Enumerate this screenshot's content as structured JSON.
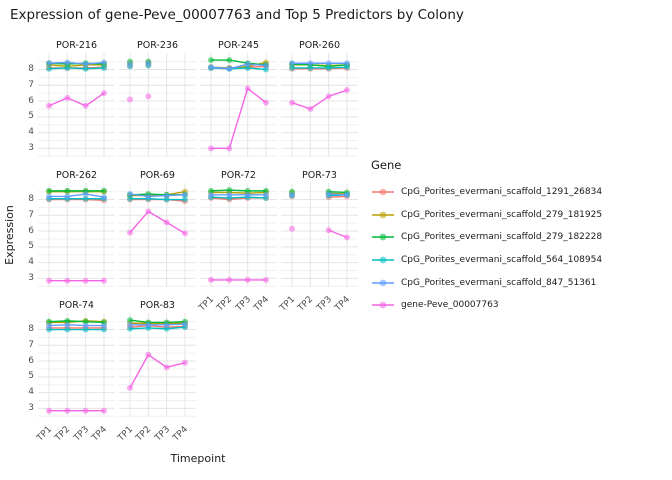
{
  "chart_data": {
    "type": "line",
    "title": "Expression of gene-Peve_00007763 and Top 5 Predictors by Colony",
    "xlabel": "Timepoint",
    "ylabel": "Expression",
    "legend_title": "Gene",
    "legend_position": "right",
    "grid": true,
    "x_categories": [
      "TP1",
      "TP2",
      "TP3",
      "TP4"
    ],
    "y_ticks": [
      3,
      4,
      5,
      6,
      7,
      8
    ],
    "ylim": [
      2.45,
      9.05
    ],
    "series": [
      {
        "name": "CpG_Porites_evermani_scaffold_1291_26834",
        "color": "#F8766D"
      },
      {
        "name": "CpG_Porites_evermani_scaffold_279_181925",
        "color": "#B79F00"
      },
      {
        "name": "CpG_Porites_evermani_scaffold_279_182228",
        "color": "#00BA38"
      },
      {
        "name": "CpG_Porites_evermani_scaffold_564_108954",
        "color": "#00BFC4"
      },
      {
        "name": "CpG_Porites_evermani_scaffold_847_51361",
        "color": "#619CFF"
      },
      {
        "name": "gene-Peve_00007763",
        "color": "#F564E3"
      }
    ],
    "facet_layout": [
      [
        "POR-216",
        "POR-236",
        "POR-245",
        "POR-260"
      ],
      [
        "POR-262",
        "POR-69",
        "POR-72",
        "POR-73"
      ],
      [
        "POR-74",
        "POR-83"
      ]
    ],
    "facets": [
      {
        "name": "POR-216",
        "lines": true,
        "values": [
          [
            8.1,
            8.1,
            8.1,
            8.15
          ],
          [
            8.3,
            8.2,
            8.3,
            8.3
          ],
          [
            8.4,
            8.35,
            8.4,
            8.35
          ],
          [
            8.05,
            8.1,
            8.05,
            8.1
          ],
          [
            8.4,
            8.45,
            8.35,
            8.45
          ],
          [
            5.7,
            6.2,
            5.7,
            6.5
          ]
        ]
      },
      {
        "name": "POR-236",
        "lines": false,
        "values": [
          [
            8.25,
            8.3,
            null,
            null
          ],
          [
            8.4,
            8.45,
            null,
            null
          ],
          [
            8.5,
            8.5,
            null,
            null
          ],
          [
            8.2,
            8.25,
            null,
            null
          ],
          [
            8.35,
            8.4,
            null,
            null
          ],
          [
            6.1,
            6.3,
            null,
            null
          ]
        ]
      },
      {
        "name": "POR-245",
        "lines": true,
        "values": [
          [
            8.1,
            8.1,
            8.15,
            8.2
          ],
          [
            8.15,
            8.1,
            8.2,
            8.45
          ],
          [
            8.6,
            8.6,
            8.4,
            8.3
          ],
          [
            8.1,
            8.05,
            8.1,
            8.0
          ],
          [
            8.15,
            8.05,
            8.35,
            8.25
          ],
          [
            3.0,
            3.0,
            6.8,
            5.9
          ]
        ]
      },
      {
        "name": "POR-260",
        "lines": true,
        "values": [
          [
            8.05,
            8.05,
            8.05,
            8.1
          ],
          [
            8.3,
            8.3,
            8.25,
            8.3
          ],
          [
            8.35,
            8.3,
            8.2,
            8.3
          ],
          [
            8.1,
            8.1,
            8.1,
            8.15
          ],
          [
            8.4,
            8.4,
            8.4,
            8.4
          ],
          [
            5.9,
            5.5,
            6.3,
            6.7
          ]
        ]
      },
      {
        "name": "POR-262",
        "lines": true,
        "values": [
          [
            8.0,
            8.0,
            8.0,
            7.95
          ],
          [
            8.5,
            8.5,
            8.5,
            8.5
          ],
          [
            8.55,
            8.55,
            8.55,
            8.55
          ],
          [
            8.05,
            8.05,
            8.05,
            8.05
          ],
          [
            8.2,
            8.2,
            8.35,
            8.15
          ],
          [
            2.85,
            2.85,
            2.85,
            2.85
          ]
        ]
      },
      {
        "name": "POR-69",
        "lines": true,
        "values": [
          [
            8.0,
            8.0,
            8.0,
            7.9
          ],
          [
            8.25,
            8.25,
            8.3,
            8.5
          ],
          [
            8.3,
            8.35,
            8.3,
            8.3
          ],
          [
            8.05,
            8.05,
            8.0,
            8.0
          ],
          [
            8.35,
            8.2,
            8.25,
            8.3
          ],
          [
            5.9,
            7.25,
            6.55,
            5.85
          ]
        ]
      },
      {
        "name": "POR-72",
        "lines": true,
        "values": [
          [
            8.1,
            8.0,
            8.1,
            8.1
          ],
          [
            8.45,
            8.45,
            8.4,
            8.45
          ],
          [
            8.55,
            8.6,
            8.55,
            8.55
          ],
          [
            8.15,
            8.1,
            8.15,
            8.1
          ],
          [
            8.3,
            8.3,
            8.3,
            8.3
          ],
          [
            2.9,
            2.9,
            2.9,
            2.9
          ]
        ]
      },
      {
        "name": "POR-73",
        "lines": true,
        "values": [
          [
            8.2,
            null,
            8.15,
            8.2
          ],
          [
            8.4,
            null,
            8.4,
            8.35
          ],
          [
            8.5,
            null,
            8.5,
            8.45
          ],
          [
            8.25,
            null,
            8.25,
            8.3
          ],
          [
            8.3,
            null,
            8.35,
            8.3
          ],
          [
            6.15,
            null,
            6.05,
            5.6
          ]
        ]
      },
      {
        "name": "POR-74",
        "lines": true,
        "values": [
          [
            8.1,
            8.1,
            8.1,
            8.1
          ],
          [
            8.45,
            8.45,
            8.55,
            8.5
          ],
          [
            8.5,
            8.55,
            8.5,
            8.45
          ],
          [
            8.0,
            8.0,
            8.0,
            8.0
          ],
          [
            8.25,
            8.3,
            8.25,
            8.25
          ],
          [
            2.85,
            2.85,
            2.85,
            2.85
          ]
        ]
      },
      {
        "name": "POR-83",
        "lines": true,
        "values": [
          [
            8.15,
            8.25,
            8.15,
            8.2
          ],
          [
            8.4,
            8.4,
            8.4,
            8.4
          ],
          [
            8.6,
            8.45,
            8.45,
            8.5
          ],
          [
            8.05,
            8.1,
            8.05,
            8.15
          ],
          [
            8.3,
            8.3,
            8.3,
            8.35
          ],
          [
            4.3,
            6.4,
            5.6,
            5.9
          ]
        ]
      }
    ],
    "style": {
      "grid_major_color": "#e4e4e4",
      "grid_minor_color": "#f0f0f0",
      "background": "#ffffff"
    }
  }
}
